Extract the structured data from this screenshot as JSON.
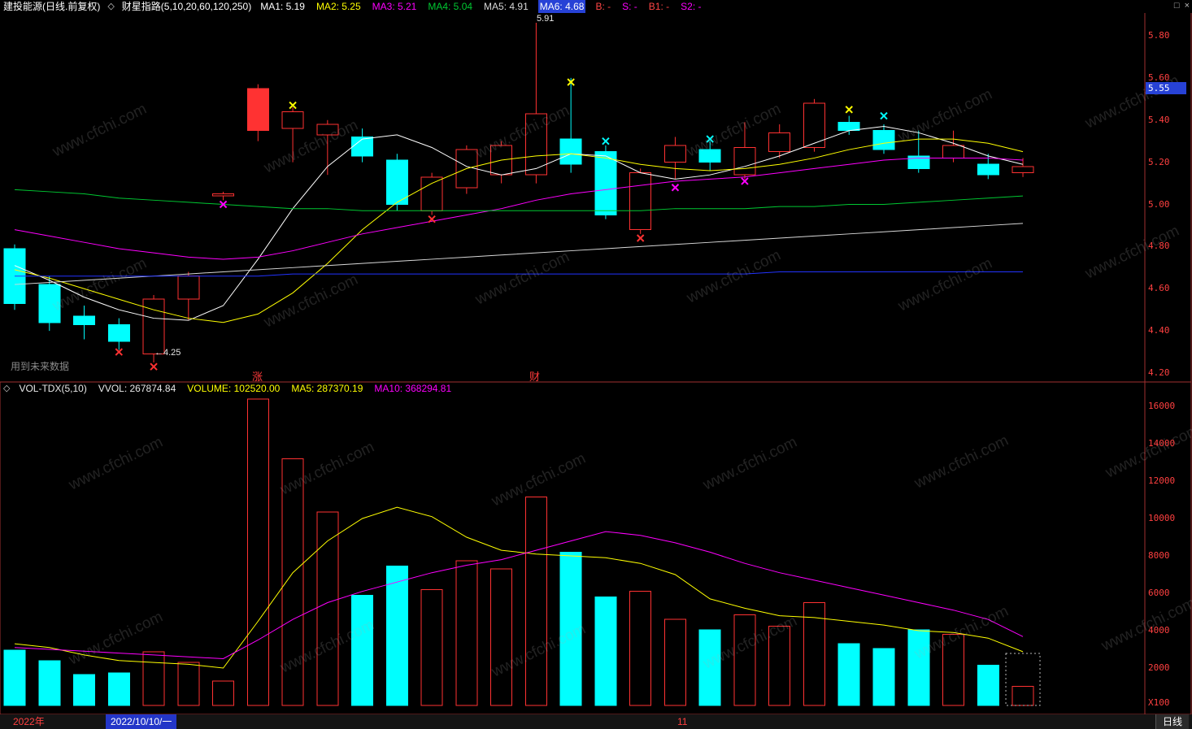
{
  "header": {
    "stock_title": "建投能源(日线.前复权)",
    "indicator_name": "财星指路(5,10,20,60,120,250)",
    "ma_labels": [
      {
        "text": "MA1: 5.19",
        "color": "#ffffff"
      },
      {
        "text": "MA2: 5.25",
        "color": "#ffff00"
      },
      {
        "text": "MA3: 5.21",
        "color": "#ff00ff"
      },
      {
        "text": "MA4: 5.04",
        "color": "#00c832"
      },
      {
        "text": "MA5: 4.91",
        "color": "#d8d8d8"
      },
      {
        "text": "MA6: 4.68",
        "color": "#ffffff",
        "bg": "#2742d6"
      },
      {
        "text": "B: -",
        "color": "#ff4545"
      },
      {
        "text": "S: -",
        "color": "#ff00ff"
      },
      {
        "text": "B1: -",
        "color": "#ff4545"
      },
      {
        "text": "S2: -",
        "color": "#ff00ff"
      }
    ]
  },
  "icons": {
    "diamond": "◇",
    "window": "□",
    "close": "×"
  },
  "vol_header": {
    "items": [
      {
        "text": "VOL-TDX(5,10)",
        "color": "#e8e8e8"
      },
      {
        "text": "VVOL: 267874.84",
        "color": "#e8e8e8"
      },
      {
        "text": "VOLUME: 102520.00",
        "color": "#ffff00"
      },
      {
        "text": "MA5: 287370.19",
        "color": "#ffff00"
      },
      {
        "text": "MA10: 368294.81",
        "color": "#ff00ff"
      }
    ]
  },
  "status_bar": {
    "year": "2022年",
    "date": "2022/10/10/一",
    "month": "11",
    "period": "日线"
  },
  "watermark": {
    "text": "www.cfchi.com"
  },
  "chart_data": {
    "type": "candlestick+volume",
    "symbol": "建投能源",
    "period_label": "日线(前复权)",
    "colors": {
      "up": "#ff3232",
      "down": "#00ffff",
      "frame": "#a03030"
    },
    "price_axis": {
      "ticks": [
        "5.80",
        "5.60",
        "5.40",
        "5.20",
        "5.00",
        "4.80",
        "4.60",
        "4.40",
        "4.20"
      ],
      "range": [
        4.2,
        5.8
      ],
      "current": "5.55"
    },
    "volume_axis": {
      "ticks": [
        "16000",
        "14000",
        "12000",
        "10000",
        "8000",
        "6000",
        "4000",
        "2000"
      ],
      "unit": "X100"
    },
    "candles": [
      {
        "o": 4.79,
        "h": 4.81,
        "l": 4.5,
        "c": 4.53,
        "v": 2950
      },
      {
        "o": 4.62,
        "h": 4.66,
        "l": 4.4,
        "c": 4.44,
        "v": 2400
      },
      {
        "o": 4.47,
        "h": 4.52,
        "l": 4.36,
        "c": 4.43,
        "v": 1650
      },
      {
        "o": 4.43,
        "h": 4.46,
        "l": 4.31,
        "c": 4.35,
        "v": 1750
      },
      {
        "o": 4.29,
        "h": 4.57,
        "l": 4.25,
        "c": 4.55,
        "v": 2870
      },
      {
        "o": 4.55,
        "h": 4.68,
        "l": 4.45,
        "c": 4.66,
        "v": 2300
      },
      {
        "o": 5.04,
        "h": 5.06,
        "l": 5.02,
        "c": 5.05,
        "v": 1300
      },
      {
        "o": 5.35,
        "h": 5.57,
        "l": 5.3,
        "c": 5.55,
        "v": 16400,
        "solid": true
      },
      {
        "o": 5.36,
        "h": 5.46,
        "l": 5.2,
        "c": 5.44,
        "v": 13200
      },
      {
        "o": 5.33,
        "h": 5.4,
        "l": 5.14,
        "c": 5.38,
        "v": 10350
      },
      {
        "o": 5.32,
        "h": 5.36,
        "l": 5.2,
        "c": 5.23,
        "v": 5900
      },
      {
        "o": 5.21,
        "h": 5.24,
        "l": 4.97,
        "c": 5.0,
        "v": 7450
      },
      {
        "o": 4.97,
        "h": 5.15,
        "l": 4.95,
        "c": 5.13,
        "v": 6200
      },
      {
        "o": 5.08,
        "h": 5.28,
        "l": 5.05,
        "c": 5.26,
        "v": 7750
      },
      {
        "o": 5.14,
        "h": 5.3,
        "l": 5.1,
        "c": 5.28,
        "v": 7300
      },
      {
        "o": 5.14,
        "h": 5.91,
        "l": 5.1,
        "c": 5.43,
        "v": 11150
      },
      {
        "o": 5.31,
        "h": 5.6,
        "l": 5.15,
        "c": 5.19,
        "v": 8200
      },
      {
        "o": 5.25,
        "h": 5.28,
        "l": 4.93,
        "c": 4.95,
        "v": 5800
      },
      {
        "o": 4.88,
        "h": 5.17,
        "l": 4.86,
        "c": 5.15,
        "v": 6100
      },
      {
        "o": 5.2,
        "h": 5.32,
        "l": 5.12,
        "c": 5.28,
        "v": 4600
      },
      {
        "o": 5.26,
        "h": 5.3,
        "l": 5.16,
        "c": 5.2,
        "v": 4050
      },
      {
        "o": 5.14,
        "h": 5.39,
        "l": 5.12,
        "c": 5.27,
        "v": 4850
      },
      {
        "o": 5.25,
        "h": 5.38,
        "l": 5.22,
        "c": 5.34,
        "v": 4250
      },
      {
        "o": 5.27,
        "h": 5.5,
        "l": 5.25,
        "c": 5.48,
        "v": 5500
      },
      {
        "o": 5.39,
        "h": 5.42,
        "l": 5.33,
        "c": 5.35,
        "v": 3300
      },
      {
        "o": 5.35,
        "h": 5.38,
        "l": 5.24,
        "c": 5.26,
        "v": 3050
      },
      {
        "o": 5.23,
        "h": 5.35,
        "l": 5.15,
        "c": 5.17,
        "v": 4050
      },
      {
        "o": 5.22,
        "h": 5.35,
        "l": 5.2,
        "c": 5.28,
        "v": 3800
      },
      {
        "o": 5.19,
        "h": 5.24,
        "l": 5.12,
        "c": 5.14,
        "v": 2150
      },
      {
        "o": 5.15,
        "h": 5.22,
        "l": 5.13,
        "c": 5.18,
        "v": 1025
      }
    ],
    "ma_lines": [
      {
        "name": "MA1",
        "period": 5,
        "color": "#ffffff",
        "values": [
          4.71,
          4.64,
          4.56,
          4.5,
          4.46,
          4.45,
          4.52,
          4.74,
          4.98,
          5.18,
          5.31,
          5.33,
          5.27,
          5.18,
          5.14,
          5.17,
          5.24,
          5.23,
          5.15,
          5.12,
          5.14,
          5.18,
          5.23,
          5.29,
          5.35,
          5.37,
          5.34,
          5.29,
          5.23,
          5.19
        ]
      },
      {
        "name": "MA2",
        "period": 10,
        "color": "#ffff00",
        "values": [
          4.69,
          4.65,
          4.6,
          4.55,
          4.5,
          4.46,
          4.44,
          4.48,
          4.58,
          4.72,
          4.88,
          5.01,
          5.1,
          5.17,
          5.21,
          5.23,
          5.24,
          5.22,
          5.19,
          5.17,
          5.16,
          5.17,
          5.19,
          5.22,
          5.26,
          5.29,
          5.31,
          5.31,
          5.29,
          5.25
        ]
      },
      {
        "name": "MA3",
        "period": 20,
        "color": "#ff00ff",
        "values": [
          4.88,
          4.85,
          4.82,
          4.79,
          4.77,
          4.75,
          4.74,
          4.75,
          4.78,
          4.82,
          4.86,
          4.89,
          4.92,
          4.95,
          4.98,
          5.02,
          5.05,
          5.07,
          5.09,
          5.11,
          5.12,
          5.13,
          5.15,
          5.17,
          5.19,
          5.21,
          5.22,
          5.22,
          5.22,
          5.21
        ]
      },
      {
        "name": "MA4",
        "period": 60,
        "color": "#00c832",
        "values": [
          5.07,
          5.06,
          5.05,
          5.03,
          5.02,
          5.01,
          5.0,
          4.99,
          4.98,
          4.98,
          4.97,
          4.97,
          4.97,
          4.97,
          4.97,
          4.97,
          4.97,
          4.97,
          4.97,
          4.98,
          4.98,
          4.98,
          4.99,
          4.99,
          5.0,
          5.0,
          5.01,
          5.02,
          5.03,
          5.04
        ]
      },
      {
        "name": "MA5",
        "period": 120,
        "color": "#d8d8d8",
        "values": [
          4.62,
          4.63,
          4.64,
          4.65,
          4.66,
          4.67,
          4.68,
          4.69,
          4.7,
          4.71,
          4.72,
          4.73,
          4.74,
          4.75,
          4.76,
          4.77,
          4.78,
          4.79,
          4.8,
          4.81,
          4.82,
          4.83,
          4.84,
          4.85,
          4.86,
          4.87,
          4.88,
          4.89,
          4.9,
          4.91
        ]
      },
      {
        "name": "MA6",
        "period": 250,
        "color": "#2233ff",
        "values": [
          4.66,
          4.66,
          4.66,
          4.66,
          4.66,
          4.66,
          4.66,
          4.66,
          4.67,
          4.67,
          4.67,
          4.67,
          4.67,
          4.67,
          4.67,
          4.67,
          4.67,
          4.67,
          4.67,
          4.67,
          4.67,
          4.67,
          4.68,
          4.68,
          4.68,
          4.68,
          4.68,
          4.68,
          4.68,
          4.68
        ]
      }
    ],
    "vol_ma_lines": [
      {
        "name": "MA5",
        "color": "#ffff00",
        "values": [
          3300,
          3100,
          2700,
          2400,
          2300,
          2200,
          2000,
          4500,
          7100,
          8800,
          10000,
          10600,
          10100,
          9000,
          8300,
          8100,
          8000,
          7900,
          7600,
          7000,
          5700,
          5200,
          4800,
          4700,
          4500,
          4300,
          4000,
          3900,
          3600,
          2874
        ]
      },
      {
        "name": "MA10",
        "color": "#ff00ff",
        "values": [
          3100,
          3000,
          2900,
          2800,
          2700,
          2600,
          2500,
          3500,
          4600,
          5500,
          6100,
          6600,
          7100,
          7500,
          7800,
          8300,
          8800,
          9300,
          9100,
          8700,
          8200,
          7600,
          7100,
          6700,
          6300,
          5900,
          5500,
          5100,
          4600,
          3683
        ]
      }
    ],
    "markers": [
      {
        "i": 3,
        "p": 4.3,
        "color": "#ff3232"
      },
      {
        "i": 4,
        "p": 4.23,
        "color": "#ff3232"
      },
      {
        "i": 6,
        "p": 5.0,
        "color": "#ff00ff"
      },
      {
        "i": 8,
        "p": 5.47,
        "color": "#ffff00"
      },
      {
        "i": 12,
        "p": 4.93,
        "color": "#ff3232"
      },
      {
        "i": 16,
        "p": 5.58,
        "color": "#ffff00"
      },
      {
        "i": 17,
        "p": 5.3,
        "color": "#00ffff"
      },
      {
        "i": 18,
        "p": 4.84,
        "color": "#ff3232"
      },
      {
        "i": 19,
        "p": 5.08,
        "color": "#ff00ff"
      },
      {
        "i": 20,
        "p": 5.31,
        "color": "#00ffff"
      },
      {
        "i": 21,
        "p": 5.11,
        "color": "#ff00ff"
      },
      {
        "i": 24,
        "p": 5.45,
        "color": "#ffff00"
      },
      {
        "i": 25,
        "p": 5.42,
        "color": "#00ffff"
      }
    ],
    "annotations": {
      "high_label": "5.91",
      "low_label": "←4.25",
      "note": "用到未来数据",
      "signal_up": "涨",
      "signal_cai": "财"
    },
    "selection": {
      "i": 29
    }
  }
}
